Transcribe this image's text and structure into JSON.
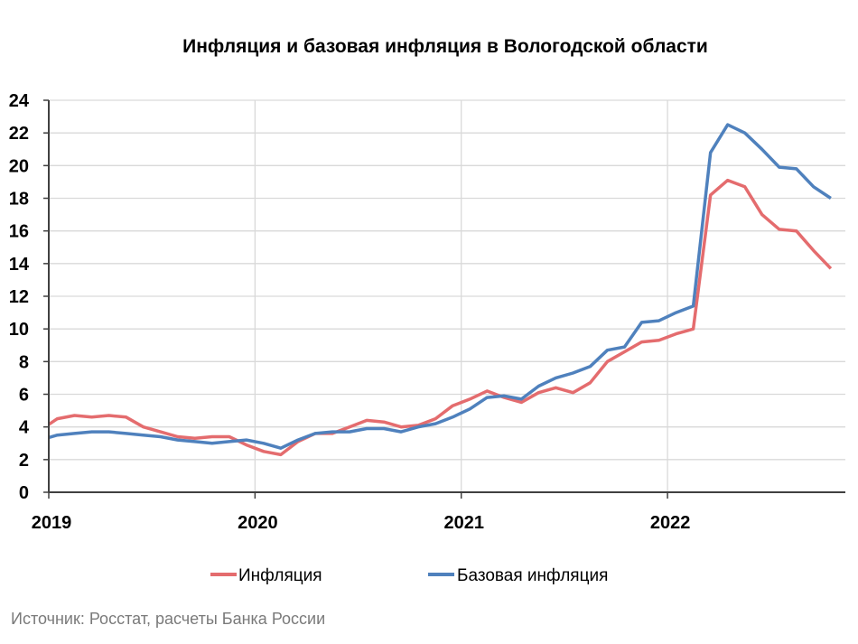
{
  "chart_data": {
    "type": "line",
    "title": "Инфляция и базовая инфляция в Вологодской области",
    "xlabel": "",
    "ylabel": "",
    "ylim": [
      0,
      24
    ],
    "yticks": [
      "0",
      "2",
      "4",
      "6",
      "8",
      "10",
      "12",
      "14",
      "16",
      "18",
      "20",
      "22",
      "24"
    ],
    "xticks": [
      "2019",
      "2020",
      "2021",
      "2022"
    ],
    "xlim": [
      "2019-01",
      "2022-11"
    ],
    "grid": true,
    "legend_position": "bottom",
    "x": [
      "2018-12",
      "2019-01",
      "2019-02",
      "2019-03",
      "2019-04",
      "2019-05",
      "2019-06",
      "2019-07",
      "2019-08",
      "2019-09",
      "2019-10",
      "2019-11",
      "2019-12",
      "2020-01",
      "2020-02",
      "2020-03",
      "2020-04",
      "2020-05",
      "2020-06",
      "2020-07",
      "2020-08",
      "2020-09",
      "2020-10",
      "2020-11",
      "2020-12",
      "2021-01",
      "2021-02",
      "2021-03",
      "2021-04",
      "2021-05",
      "2021-06",
      "2021-07",
      "2021-08",
      "2021-09",
      "2021-10",
      "2021-11",
      "2021-12",
      "2022-01",
      "2022-02",
      "2022-03",
      "2022-04",
      "2022-05",
      "2022-06",
      "2022-07",
      "2022-08",
      "2022-09",
      "2022-10"
    ],
    "series": [
      {
        "name": "Инфляция",
        "color": "#E46C6E",
        "values": [
          3.8,
          4.5,
          4.7,
          4.6,
          4.7,
          4.6,
          4.0,
          3.7,
          3.4,
          3.3,
          3.4,
          3.4,
          2.9,
          2.5,
          2.3,
          3.1,
          3.6,
          3.6,
          4.0,
          4.4,
          4.3,
          4.0,
          4.1,
          4.5,
          5.3,
          5.7,
          6.2,
          5.8,
          5.5,
          6.1,
          6.4,
          6.1,
          6.7,
          8.0,
          8.6,
          9.2,
          9.3,
          9.7,
          10.0,
          18.2,
          19.1,
          18.7,
          17.0,
          16.1,
          16.0,
          14.8,
          13.7
        ]
      },
      {
        "name": "Базовая инфляция",
        "color": "#4F81BD",
        "values": [
          3.2,
          3.5,
          3.6,
          3.7,
          3.7,
          3.6,
          3.5,
          3.4,
          3.2,
          3.1,
          3.0,
          3.1,
          3.2,
          3.0,
          2.7,
          3.2,
          3.6,
          3.7,
          3.7,
          3.9,
          3.9,
          3.7,
          4.0,
          4.2,
          4.6,
          5.1,
          5.8,
          5.9,
          5.7,
          6.5,
          7.0,
          7.3,
          7.7,
          8.7,
          8.9,
          10.4,
          10.5,
          11.0,
          11.4,
          20.8,
          22.5,
          22.0,
          21.0,
          19.9,
          19.8,
          18.7,
          18.0
        ]
      }
    ]
  },
  "source": "Источник: Росстат, расчеты Банка России"
}
